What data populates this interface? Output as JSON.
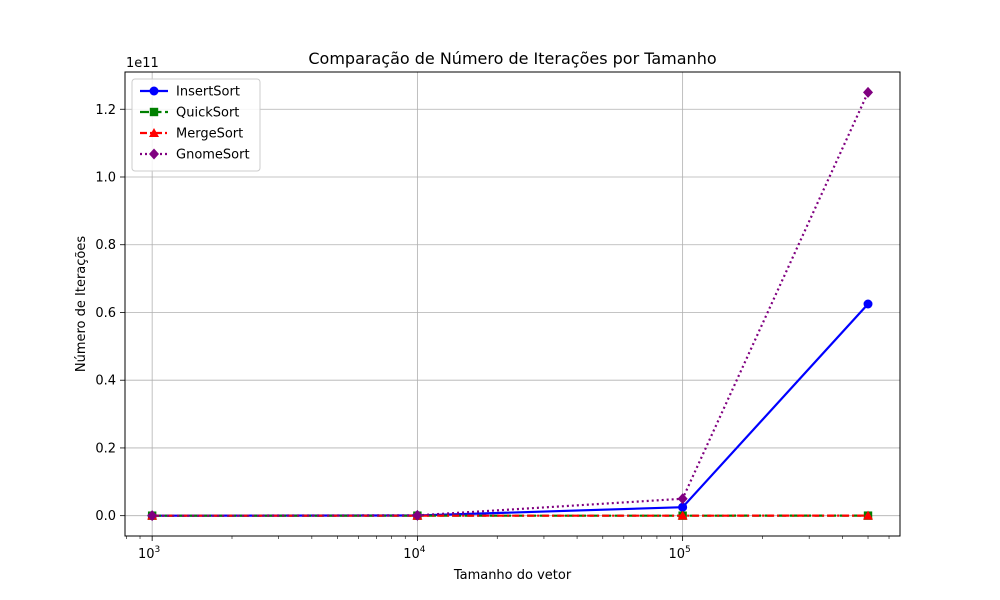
{
  "chart_data": {
    "type": "line",
    "title": "Comparação de Número de Iterações por Tamanho",
    "xlabel": "Tamanho do vetor",
    "ylabel": "Número de Iterações",
    "xscale": "log",
    "xlim": [
      790,
      660000
    ],
    "ylim": [
      -0.06,
      1.31
    ],
    "y_multiplier_label": "1e11",
    "grid": true,
    "legend_position": "top-left",
    "x": [
      1000,
      10000,
      100000,
      500000
    ],
    "x_ticks": [
      {
        "value": 1000,
        "base": "10",
        "exp": "3"
      },
      {
        "value": 10000,
        "base": "10",
        "exp": "4"
      },
      {
        "value": 100000,
        "base": "10",
        "exp": "5"
      }
    ],
    "y_ticks": [
      {
        "value": 0.0,
        "label": "0.0"
      },
      {
        "value": 0.2,
        "label": "0.2"
      },
      {
        "value": 0.4,
        "label": "0.4"
      },
      {
        "value": 0.6,
        "label": "0.6"
      },
      {
        "value": 0.8,
        "label": "0.8"
      },
      {
        "value": 1.0,
        "label": "1.0"
      },
      {
        "value": 1.2,
        "label": "1.2"
      }
    ],
    "series": [
      {
        "name": "InsertSort",
        "values": [
          5e-06,
          0.0005,
          0.025,
          0.625
        ],
        "color": "#0000ff",
        "marker": "circle",
        "line_style": "solid"
      },
      {
        "name": "QuickSort",
        "values": [
          1e-07,
          1.5e-06,
          2e-05,
          0.0001
        ],
        "color": "#008000",
        "marker": "square",
        "line_style": "dashed"
      },
      {
        "name": "MergeSort",
        "values": [
          1e-07,
          1.3e-06,
          1.7e-05,
          0.0001
        ],
        "color": "#ff0000",
        "marker": "triangle",
        "line_style": "dashdot"
      },
      {
        "name": "GnomeSort",
        "values": [
          1e-05,
          0.001,
          0.05,
          1.25
        ],
        "color": "#800080",
        "marker": "diamond",
        "line_style": "dotted"
      }
    ]
  }
}
